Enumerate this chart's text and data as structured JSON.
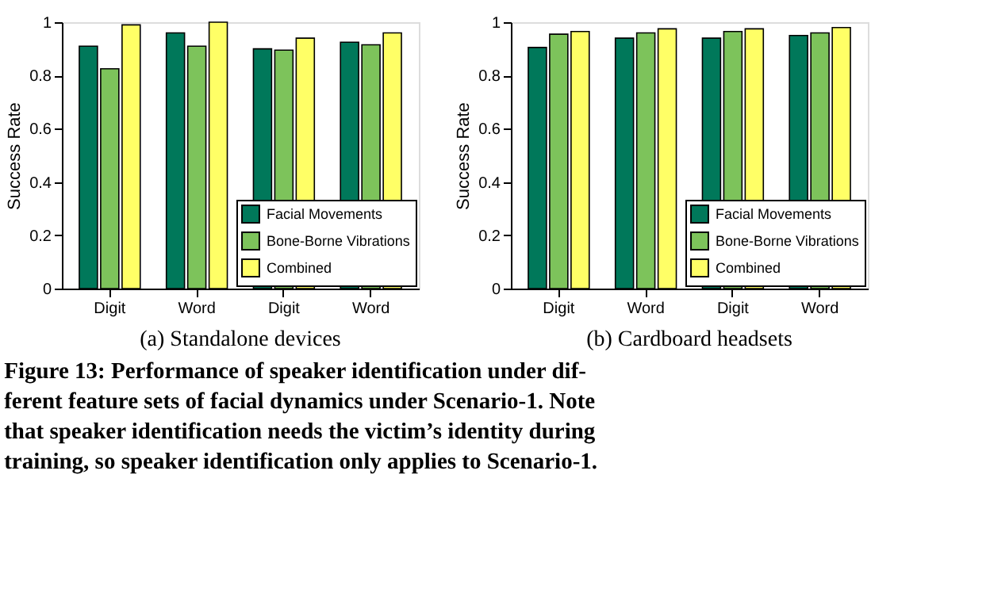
{
  "chart_data": [
    {
      "type": "bar",
      "title": "(a)  Standalone devices",
      "ylabel": "Success Rate",
      "categories": [
        "Digit",
        "Word",
        "Digit",
        "Word"
      ],
      "series": [
        {
          "name": "Facial Movements",
          "color": "#00785a",
          "values": [
            0.91,
            0.96,
            0.9,
            0.925
          ]
        },
        {
          "name": "Bone-Borne Vibrations",
          "color": "#7dc35b",
          "values": [
            0.825,
            0.91,
            0.895,
            0.915
          ]
        },
        {
          "name": "Combined",
          "color": "#ffff66",
          "values": [
            0.99,
            1.0,
            0.94,
            0.96
          ]
        }
      ],
      "ylim": [
        0,
        1
      ],
      "yticks": [
        0,
        0.2,
        0.4,
        0.6,
        0.8,
        1
      ],
      "legend": "bottom right",
      "grid": false,
      "annotations": [
        "Figure 13: Performance of speaker identification under dif-",
        "ferent feature sets of facial dynamics under Scenario-1. Note",
        "that speaker identification needs the victim’s identity during",
        "training, so speaker identification only applies to Scenario-1."
      ]
    },
    {
      "type": "bar",
      "title": "(b)  Cardboard headsets",
      "ylabel": "Success Rate",
      "categories": [
        "Digit",
        "Word",
        "Digit",
        "Word"
      ],
      "series": [
        {
          "name": "Facial Movements",
          "color": "#00785a",
          "values": [
            0.905,
            0.94,
            0.94,
            0.95
          ]
        },
        {
          "name": "Bone-Borne Vibrations",
          "color": "#7dc35b",
          "values": [
            0.955,
            0.96,
            0.965,
            0.96
          ]
        },
        {
          "name": "Combined",
          "color": "#ffff66",
          "values": [
            0.965,
            0.975,
            0.975,
            0.98
          ]
        }
      ],
      "ylim": [
        0,
        1
      ],
      "yticks": [
        0,
        0.2,
        0.4,
        0.6,
        0.8,
        1
      ],
      "legend": "bottom right",
      "grid": false
    }
  ]
}
